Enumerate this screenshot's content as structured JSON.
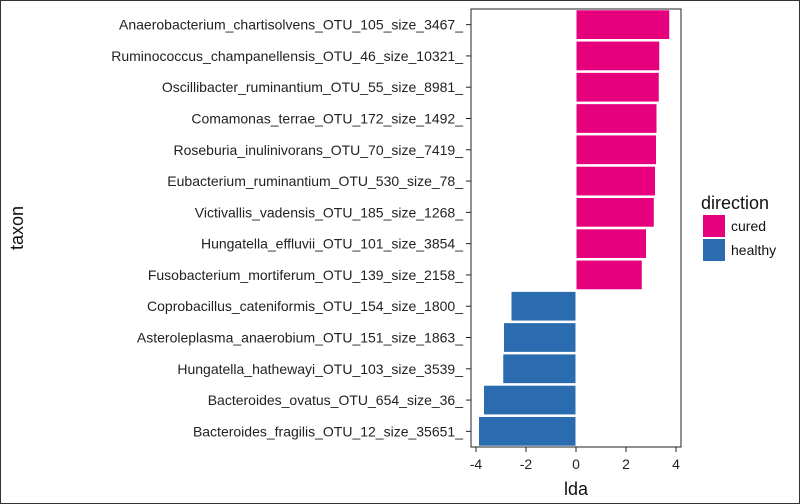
{
  "chart_data": {
    "type": "bar",
    "orientation": "horizontal",
    "xlabel": "lda",
    "ylabel": "taxon",
    "xlim": [
      -4.2,
      4.2
    ],
    "xticks": [
      "-4",
      "-2",
      "0",
      "2",
      "4"
    ],
    "xtick_values": [
      -4,
      -2,
      0,
      2,
      4
    ],
    "grid": false,
    "legend": {
      "title": "direction",
      "placement": "right",
      "entries": [
        {
          "name": "cured",
          "color": "#e6007e"
        },
        {
          "name": "healthy",
          "color": "#2b6cb0"
        }
      ]
    },
    "categories": [
      "Anaerobacterium_chartisolvens_OTU_105_size_3467_",
      "Ruminococcus_champanellensis_OTU_46_size_10321_",
      "Oscillibacter_ruminantium_OTU_55_size_8981_",
      "Comamonas_terrae_OTU_172_size_1492_",
      "Roseburia_inulinivorans_OTU_70_size_7419_",
      "Eubacterium_ruminantium_OTU_530_size_78_",
      "Victivallis_vadensis_OTU_185_size_1268_",
      "Hungatella_effluvii_OTU_101_size_3854_",
      "Fusobacterium_mortiferum_OTU_139_size_2158_",
      "Coprobacillus_cateniformis_OTU_154_size_1800_",
      "Asteroleplasma_anaerobium_OTU_151_size_1863_",
      "Hungatella_hathewayi_OTU_103_size_3539_",
      "Bacteroides_ovatus_OTU_654_size_36_",
      "Bacteroides_fragilis_OTU_12_size_35651_"
    ],
    "values": [
      3.75,
      3.35,
      3.33,
      3.24,
      3.22,
      3.18,
      3.13,
      2.82,
      2.65,
      -2.6,
      -2.9,
      -2.93,
      -3.7,
      -3.9
    ],
    "direction": [
      "cured",
      "cured",
      "cured",
      "cured",
      "cured",
      "cured",
      "cured",
      "cured",
      "cured",
      "healthy",
      "healthy",
      "healthy",
      "healthy",
      "healthy"
    ]
  }
}
